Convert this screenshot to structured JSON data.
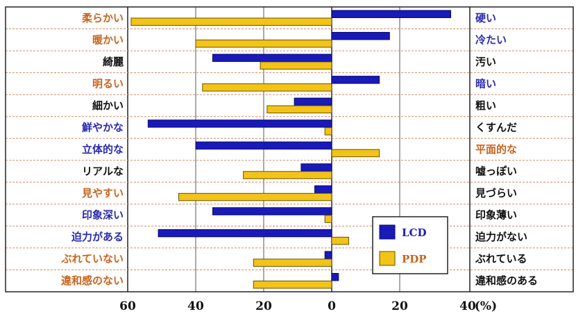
{
  "chart_data": {
    "type": "bar",
    "orientation": "horizontal-diverging",
    "title": "",
    "unit_label": "(%)",
    "x_ticks": [
      "60",
      "40",
      "20",
      "0",
      "20",
      "40"
    ],
    "xlim": [
      -60,
      40
    ],
    "grid": "vertical lines every 20, dashed row separators",
    "legend_position": "bottom-right",
    "colors": {
      "LCD": "#1a1ab8",
      "PDP": "#f2c318",
      "label_orange": "#c8641e",
      "label_blue": "#2a2ab0",
      "label_black": "#111111",
      "row_line": "#d08a6a"
    },
    "series": [
      {
        "name": "LCD",
        "values": [
          35,
          17,
          -35,
          14,
          -11,
          -54,
          -40,
          -9,
          -5,
          -35,
          -51,
          -2,
          2
        ]
      },
      {
        "name": "PDP",
        "values": [
          -59,
          -40,
          -21,
          -38,
          -19,
          -2,
          14,
          -26,
          -45,
          -2,
          5,
          -23,
          -23
        ]
      }
    ],
    "left_labels": [
      {
        "text": "柔らかい",
        "color": "orange"
      },
      {
        "text": "暖かい",
        "color": "orange"
      },
      {
        "text": "綺麗",
        "color": "black"
      },
      {
        "text": "明るい",
        "color": "orange"
      },
      {
        "text": "細かい",
        "color": "black"
      },
      {
        "text": "鮮やかな",
        "color": "blue"
      },
      {
        "text": "立体的な",
        "color": "blue"
      },
      {
        "text": "リアルな",
        "color": "black"
      },
      {
        "text": "見やすい",
        "color": "orange"
      },
      {
        "text": "印象深い",
        "color": "blue"
      },
      {
        "text": "迫力がある",
        "color": "blue"
      },
      {
        "text": "ぶれていない",
        "color": "orange"
      },
      {
        "text": "違和感のない",
        "color": "orange"
      }
    ],
    "right_labels": [
      {
        "text": "硬い",
        "color": "blue"
      },
      {
        "text": "冷たい",
        "color": "blue"
      },
      {
        "text": "汚い",
        "color": "black"
      },
      {
        "text": "暗い",
        "color": "blue"
      },
      {
        "text": "粗い",
        "color": "black"
      },
      {
        "text": "くすんだ",
        "color": "black"
      },
      {
        "text": "平面的な",
        "color": "orange"
      },
      {
        "text": "嘘っぽい",
        "color": "black"
      },
      {
        "text": "見づらい",
        "color": "black"
      },
      {
        "text": "印象薄い",
        "color": "black"
      },
      {
        "text": "迫力がない",
        "color": "black"
      },
      {
        "text": "ぶれている",
        "color": "black"
      },
      {
        "text": "違和感のある",
        "color": "black"
      }
    ]
  }
}
